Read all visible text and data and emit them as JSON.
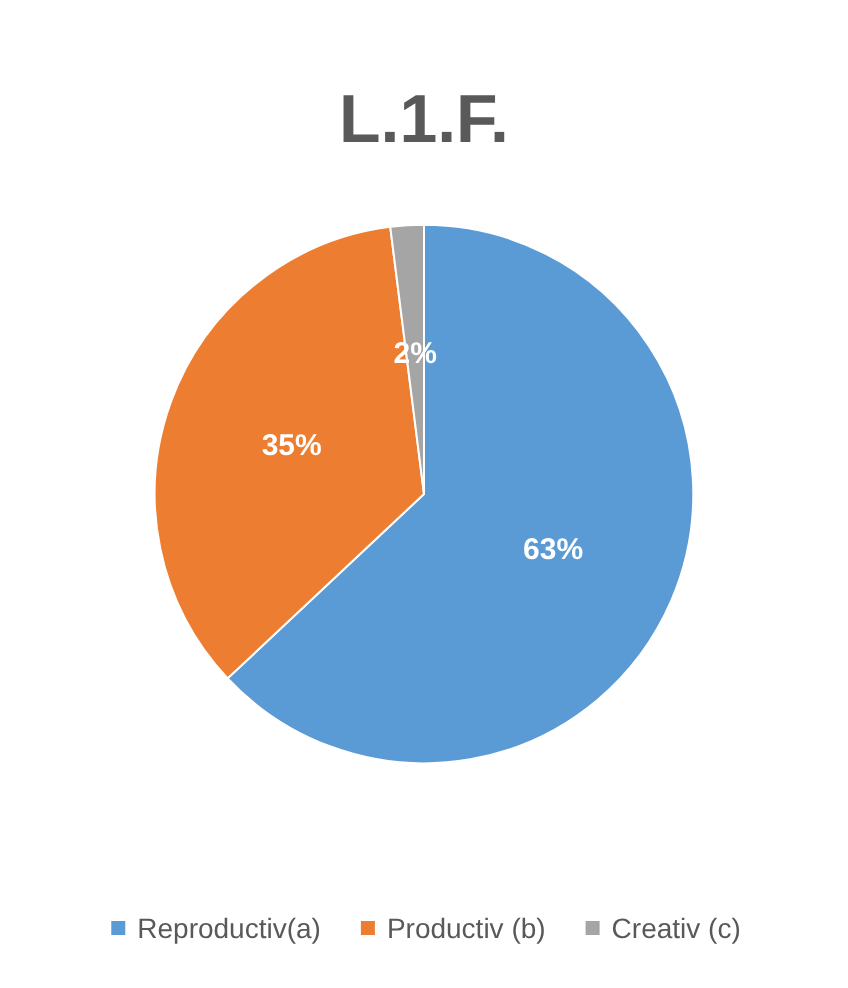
{
  "chart_data": {
    "type": "pie",
    "title": "L.1.F.",
    "categories": [
      "Reproductiv(a)",
      "Productiv (b)",
      "Creativ (c)"
    ],
    "values": [
      63,
      35,
      2
    ],
    "colors": [
      "#5b9bd5",
      "#ed7d31",
      "#a5a5a5"
    ],
    "value_labels": [
      "63%",
      "35%",
      "2%"
    ],
    "legend": "bottom"
  }
}
